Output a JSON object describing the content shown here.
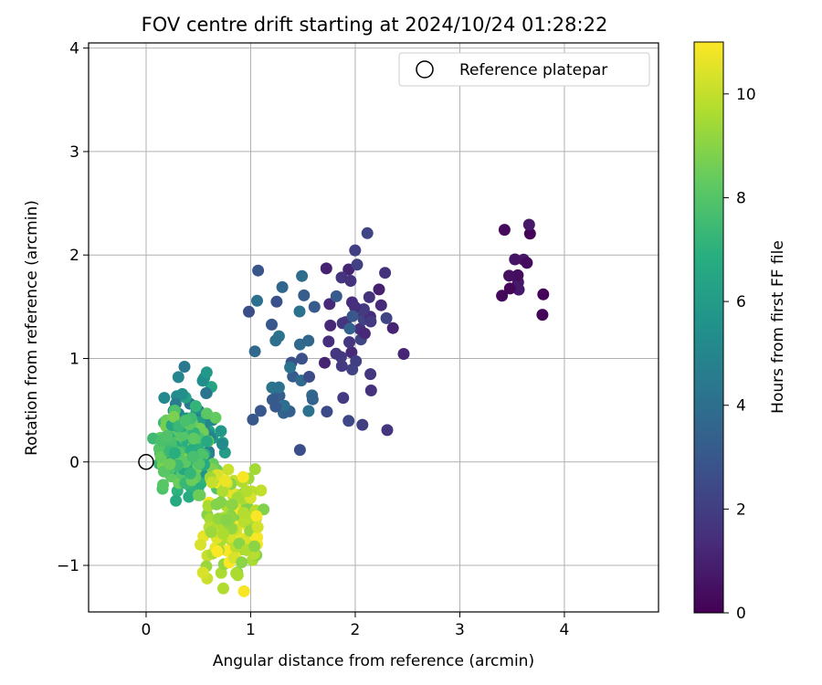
{
  "chart_data": {
    "type": "scatter",
    "title": "FOV centre drift starting at 2024/10/24 01:28:22",
    "xlabel": "Angular distance from reference (arcmin)",
    "ylabel": "Rotation from reference (arcmin)",
    "xlim": [
      -0.55,
      4.9
    ],
    "ylim": [
      -1.45,
      4.05
    ],
    "xticks": [
      "0",
      "1",
      "2",
      "3",
      "4"
    ],
    "yticks": [
      "−1",
      "0",
      "1",
      "2",
      "3",
      "4"
    ],
    "grid": true,
    "colormap": "viridis",
    "colorbar": {
      "label": "Hours from first FF file",
      "range": [
        0,
        11
      ],
      "ticks": [
        "0",
        "2",
        "4",
        "6",
        "8",
        "10"
      ]
    },
    "legend": {
      "placement": "top-right",
      "entries": [
        "Reference platepar"
      ]
    },
    "reference_point": {
      "x": 0,
      "y": 0
    },
    "clusters": [
      {
        "hours": [
          0.1,
          0.8
        ],
        "x": [
          3.3,
          3.85
        ],
        "y": [
          1.4,
          2.35
        ],
        "n": 14
      },
      {
        "hours": [
          1.0,
          2.4
        ],
        "x": [
          1.6,
          2.5
        ],
        "y": [
          0.15,
          2.4
        ],
        "n": 45
      },
      {
        "hours": [
          2.4,
          4.2
        ],
        "x": [
          0.8,
          2.1
        ],
        "y": [
          0.0,
          2.0
        ],
        "n": 40
      },
      {
        "hours": [
          4.2,
          6.5
        ],
        "x": [
          0.1,
          0.8
        ],
        "y": [
          -0.45,
          1.05
        ],
        "n": 70
      },
      {
        "hours": [
          6.5,
          8.8
        ],
        "x": [
          0.05,
          0.7
        ],
        "y": [
          -0.4,
          0.55
        ],
        "n": 130
      },
      {
        "hours": [
          8.8,
          11.0
        ],
        "x": [
          0.5,
          1.15
        ],
        "y": [
          -1.3,
          0.1
        ],
        "n": 130
      }
    ]
  }
}
